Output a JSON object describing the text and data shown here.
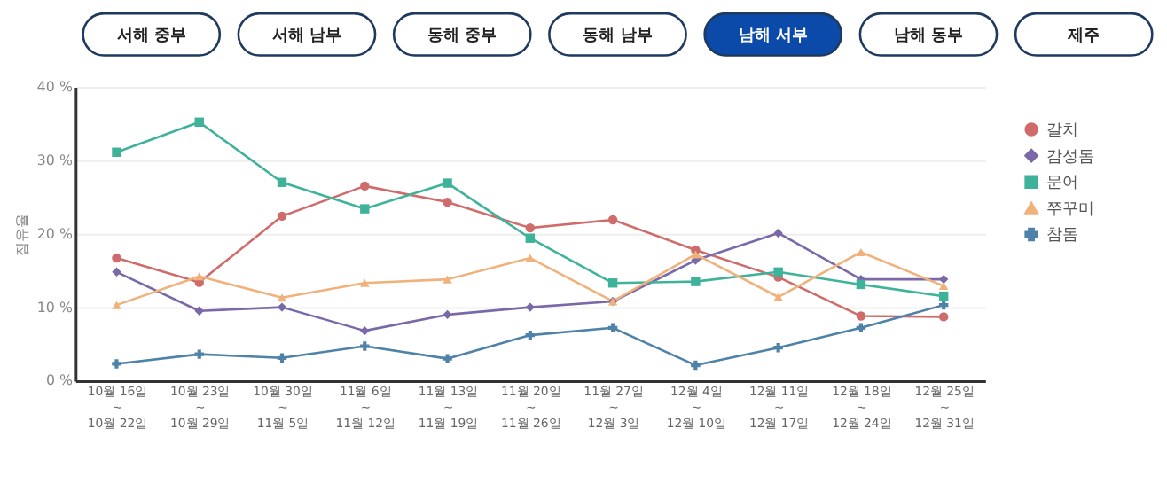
{
  "chart_data": {
    "type": "line",
    "annotations": [
      "서해 중부",
      "서해 남부",
      "동해 중부",
      "동해 남부",
      "남해 서부",
      "남해 동부",
      "제주"
    ],
    "ylabel": "점유율",
    "categories": [
      "10월 16일\n~\n10월 22일",
      "10월 23일\n~\n10월 29일",
      "10월 30일\n~\n11월 5일",
      "11월 6일\n~\n11월 12일",
      "11월 13일\n~\n11월 19일",
      "11월 20일\n~\n11월 26일",
      "11월 27일\n~\n12월 3일",
      "12월 4일\n~\n12월 10일",
      "12월 11일\n~\n12월 17일",
      "12월 18일\n~\n12월 24일",
      "12월 25일\n~\n12월 31일"
    ],
    "series": [
      {
        "name": "갈치",
        "color": "#d06b6b",
        "marker": "circle",
        "values": [
          16.7,
          13.4,
          22.4,
          26.5,
          24.3,
          20.8,
          21.9,
          17.8,
          14.1,
          8.8,
          8.7
        ]
      },
      {
        "name": "감성돔",
        "color": "#7b68a8",
        "marker": "diamond",
        "values": [
          14.8,
          9.5,
          10.0,
          6.8,
          9.0,
          10.0,
          10.8,
          16.4,
          20.1,
          13.8,
          13.8
        ]
      },
      {
        "name": "문어",
        "color": "#3fb39a",
        "marker": "square",
        "values": [
          31.1,
          35.2,
          27.0,
          23.4,
          26.9,
          19.4,
          13.3,
          13.5,
          14.8,
          13.1,
          11.5
        ]
      },
      {
        "name": "쭈꾸미",
        "color": "#f0b27a",
        "marker": "triangle",
        "values": [
          10.3,
          14.2,
          11.3,
          13.3,
          13.8,
          16.7,
          10.8,
          17.2,
          11.4,
          17.5,
          12.9
        ]
      },
      {
        "name": "참돔",
        "color": "#4f82a8",
        "marker": "cross",
        "values": [
          2.3,
          3.6,
          3.1,
          4.7,
          3.0,
          6.2,
          7.2,
          2.1,
          4.5,
          7.2,
          10.3
        ]
      }
    ],
    "ylim": [
      0,
      40
    ],
    "yticks": [
      {
        "value": 0,
        "label": "0 %"
      },
      {
        "value": 10,
        "label": "10 %"
      },
      {
        "value": 20,
        "label": "20 %"
      },
      {
        "value": 30,
        "label": "30 %"
      },
      {
        "value": 40,
        "label": "40 %"
      }
    ],
    "grid": "y",
    "legend": "right",
    "line_style": "solid"
  }
}
